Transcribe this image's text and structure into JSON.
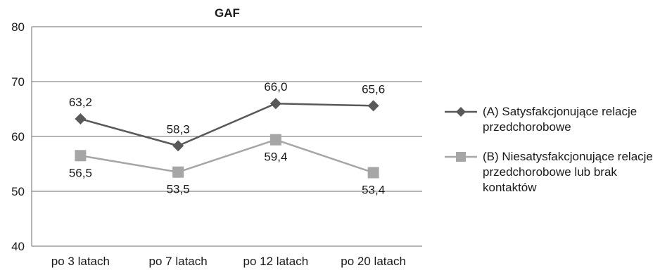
{
  "chart_data": {
    "type": "line",
    "title": "GAF",
    "xlabel": "",
    "ylabel": "",
    "categories": [
      "po 3 latach",
      "po 7 latach",
      "po 12 latach",
      "po 20 latach"
    ],
    "ylim": [
      40,
      80
    ],
    "yticks": [
      "40",
      "50",
      "60",
      "70",
      "80"
    ],
    "grid": true,
    "legend_position": "right",
    "series": [
      {
        "name": "(A) Satysfakcjonujące relacje przedchorobowe",
        "values": [
          63.2,
          58.3,
          66.0,
          65.6
        ],
        "labels": [
          "63,2",
          "58,3",
          "66,0",
          "65,6"
        ],
        "color": "#595959",
        "marker": "diamond",
        "label_position": "above"
      },
      {
        "name": "(B) Niesatysfakcjonujące relacje przedchorobowe lub brak kontaktów",
        "values": [
          56.5,
          53.5,
          59.4,
          53.4
        ],
        "labels": [
          "56,5",
          "53,5",
          "59,4",
          "53,4"
        ],
        "color": "#a6a6a6",
        "marker": "square",
        "label_position": "below"
      }
    ]
  }
}
